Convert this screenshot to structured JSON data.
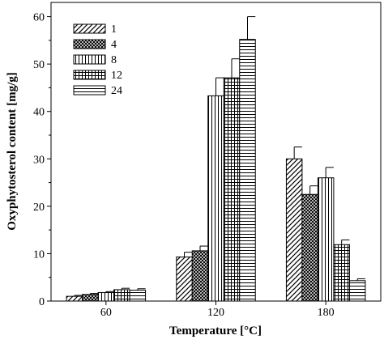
{
  "chart_data": {
    "type": "bar",
    "title": "",
    "xlabel": "Temperature [°C]",
    "ylabel": "Oxyphytosterol content [mg/g]",
    "ylim": [
      0,
      63
    ],
    "yticks": [
      0,
      10,
      20,
      30,
      40,
      50,
      60
    ],
    "categories": [
      "60",
      "120",
      "180"
    ],
    "legend_position": "top-left",
    "error_bars": true,
    "series": [
      {
        "name": "1",
        "pattern": "diagonal-hatch",
        "values": [
          1.0,
          9.3,
          30.0
        ],
        "errors": [
          0.2,
          1.0,
          2.5
        ]
      },
      {
        "name": "4",
        "pattern": "crosshatch-dense",
        "values": [
          1.4,
          10.6,
          22.5
        ],
        "errors": [
          0.2,
          1.0,
          1.8
        ]
      },
      {
        "name": "8",
        "pattern": "vertical-lines",
        "values": [
          1.8,
          43.3,
          26.0
        ],
        "errors": [
          0.2,
          3.8,
          2.2
        ]
      },
      {
        "name": "12",
        "pattern": "grid",
        "values": [
          2.4,
          47.1,
          11.9
        ],
        "errors": [
          0.3,
          4.0,
          1.0
        ]
      },
      {
        "name": "24",
        "pattern": "horizontal-lines",
        "values": [
          2.3,
          55.2,
          4.3
        ],
        "errors": [
          0.3,
          4.8,
          0.4
        ]
      }
    ]
  }
}
